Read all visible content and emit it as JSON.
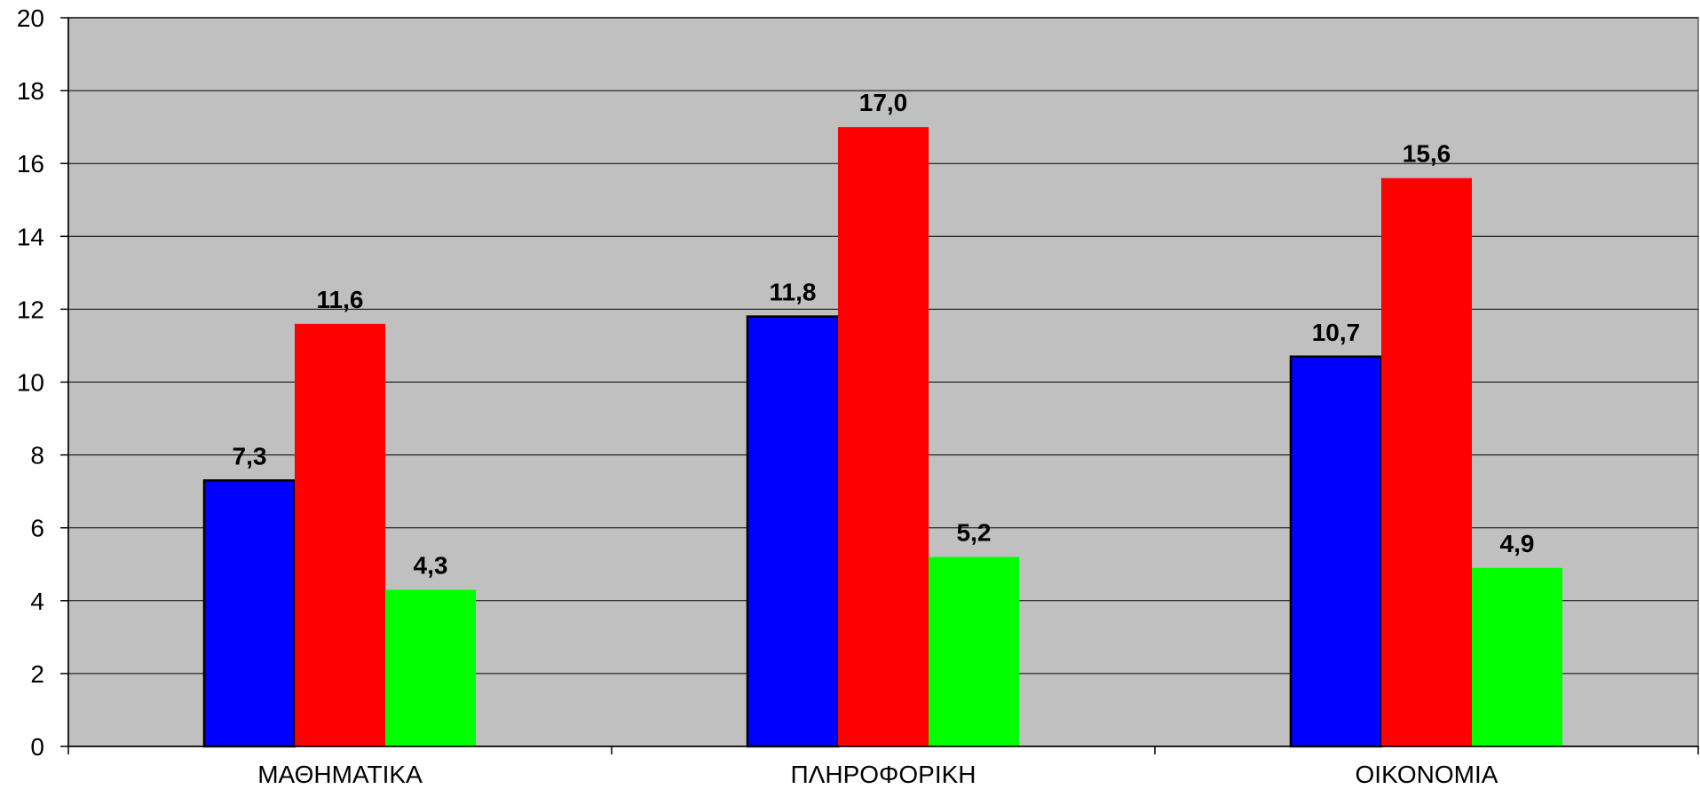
{
  "chart_data": {
    "type": "bar",
    "categories": [
      "ΜΑΘΗΜΑΤΙΚΑ",
      "ΠΛΗΡΟΦΟΡΙΚΗ",
      "ΟΙΚΟΝΟΜΙΑ"
    ],
    "series": [
      {
        "values": [
          7.3,
          11.8,
          10.7
        ],
        "labels": [
          "7,3",
          "11,8",
          "10,7"
        ],
        "color": "#0000ff",
        "outlined": true
      },
      {
        "values": [
          11.6,
          17.0,
          15.6
        ],
        "labels": [
          "11,6",
          "17,0",
          "15,6"
        ],
        "color": "#ff0000",
        "outlined": false
      },
      {
        "values": [
          4.3,
          5.2,
          4.9
        ],
        "labels": [
          "4,3",
          "5,2",
          "4,9"
        ],
        "color": "#00ff00",
        "outlined": false
      }
    ],
    "ylim": [
      0,
      20
    ],
    "yticks": [
      "0",
      "2",
      "4",
      "6",
      "8",
      "10",
      "12",
      "14",
      "16",
      "18",
      "20"
    ],
    "grid": true,
    "legend": "none",
    "title": "",
    "xlabel": "",
    "ylabel": "",
    "plot_background": "#c0c0c0",
    "gridline_color": "#000000"
  }
}
